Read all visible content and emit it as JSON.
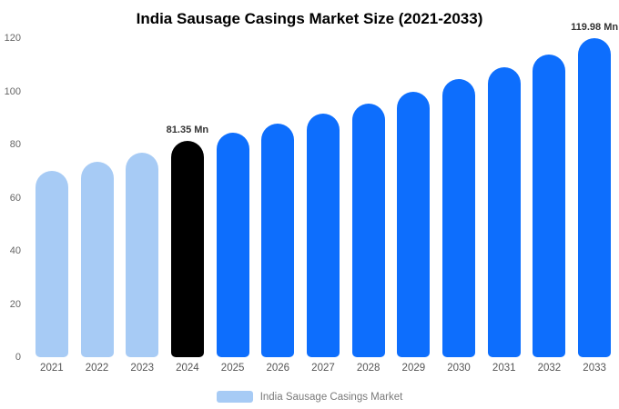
{
  "chart": {
    "colors": {
      "light": "#a7cbf5",
      "primary": "#0d6efd",
      "highlight": "#000000"
    }
  },
  "chart_data": {
    "type": "bar",
    "title": "India Sausage Casings Market Size (2021-2033)",
    "legend_label": "India Sausage Casings Market",
    "categories": [
      "2021",
      "2022",
      "2023",
      "2024",
      "2025",
      "2026",
      "2027",
      "2028",
      "2029",
      "2030",
      "2031",
      "2032",
      "2033"
    ],
    "values": [
      70,
      73.5,
      77,
      81.35,
      84.5,
      88,
      91.5,
      95.5,
      100,
      104.5,
      109,
      114,
      119.98
    ],
    "bar_styles": [
      "light",
      "light",
      "light",
      "highlight",
      "primary",
      "primary",
      "primary",
      "primary",
      "primary",
      "primary",
      "primary",
      "primary",
      "primary"
    ],
    "value_labels": [
      {
        "index": 3,
        "text": "81.35 Mn"
      },
      {
        "index": 12,
        "text": "119.98 Mn"
      }
    ],
    "xlabel": "",
    "ylabel": "",
    "ylim": [
      0,
      120
    ],
    "yticks": [
      0,
      20,
      40,
      60,
      80,
      100,
      120
    ],
    "grid": false,
    "legend_position": "bottom"
  }
}
